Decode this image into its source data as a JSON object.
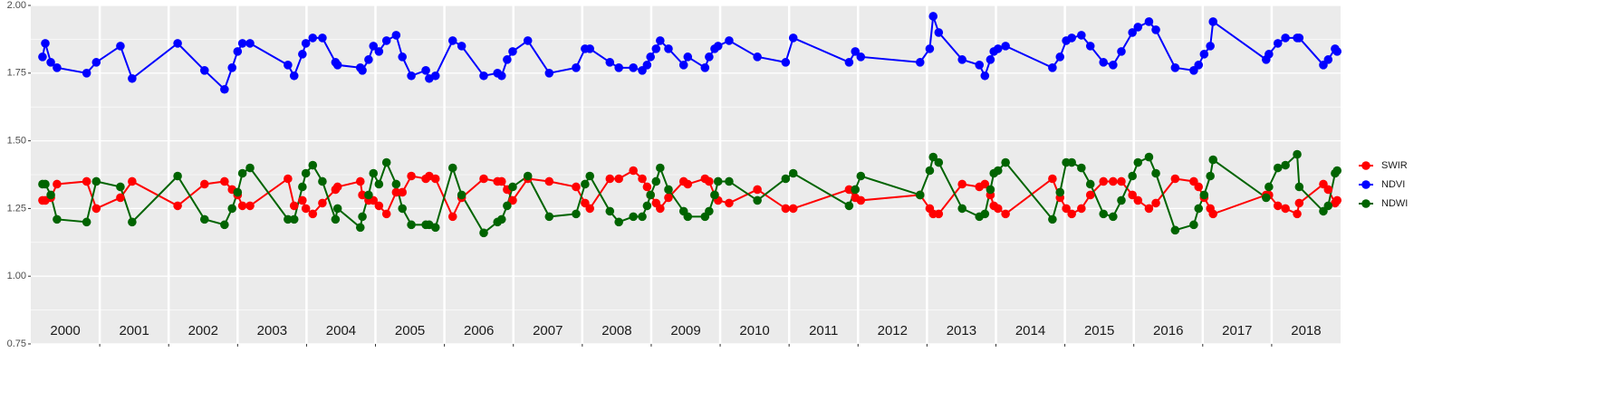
{
  "chart_data": {
    "type": "line",
    "x": [
      2000.17,
      2000.21,
      2000.29,
      2000.38,
      2000.81,
      2000.95,
      2001.3,
      2001.47,
      2002.13,
      2002.52,
      2002.81,
      2002.92,
      2003.0,
      2003.07,
      2003.18,
      2003.73,
      2003.82,
      2003.94,
      2003.99,
      2004.09,
      2004.23,
      2004.42,
      2004.45,
      2004.78,
      2004.81,
      2004.9,
      2004.97,
      2005.05,
      2005.16,
      2005.3,
      2005.39,
      2005.52,
      2005.73,
      2005.78,
      2005.87,
      2006.12,
      2006.25,
      2006.57,
      2006.77,
      2006.83,
      2006.91,
      2006.99,
      2007.21,
      2007.52,
      2007.91,
      2008.04,
      2008.11,
      2008.4,
      2008.53,
      2008.74,
      2008.87,
      2008.94,
      2008.99,
      2009.07,
      2009.13,
      2009.25,
      2009.47,
      2009.53,
      2009.78,
      2009.84,
      2009.92,
      2009.97,
      2010.13,
      2010.54,
      2010.95,
      2011.06,
      2011.87,
      2011.96,
      2012.04,
      2012.9,
      2013.04,
      2013.09,
      2013.17,
      2013.51,
      2013.76,
      2013.84,
      2013.92,
      2013.97,
      2014.03,
      2014.14,
      2014.82,
      2014.93,
      2015.02,
      2015.1,
      2015.24,
      2015.37,
      2015.56,
      2015.7,
      2015.82,
      2015.98,
      2016.06,
      2016.22,
      2016.32,
      2016.6,
      2016.87,
      2016.94,
      2017.02,
      2017.11,
      2017.15,
      2017.92,
      2017.96,
      2018.09,
      2018.2,
      2018.37,
      2018.4,
      2018.75,
      2018.82,
      2018.92,
      2018.95
    ],
    "series": [
      {
        "name": "SWIR",
        "color": "#ff0000",
        "values": [
          1.28,
          1.28,
          1.29,
          1.34,
          1.35,
          1.25,
          1.29,
          1.35,
          1.26,
          1.34,
          1.35,
          1.32,
          1.3,
          1.26,
          1.26,
          1.36,
          1.26,
          1.28,
          1.25,
          1.23,
          1.27,
          1.32,
          1.33,
          1.35,
          1.3,
          1.28,
          1.28,
          1.26,
          1.23,
          1.31,
          1.31,
          1.37,
          1.36,
          1.37,
          1.36,
          1.22,
          1.29,
          1.36,
          1.35,
          1.35,
          1.32,
          1.28,
          1.36,
          1.35,
          1.33,
          1.27,
          1.25,
          1.36,
          1.36,
          1.39,
          1.36,
          1.33,
          1.3,
          1.27,
          1.25,
          1.29,
          1.35,
          1.34,
          1.36,
          1.35,
          1.3,
          1.28,
          1.27,
          1.32,
          1.25,
          1.25,
          1.32,
          1.29,
          1.28,
          1.3,
          1.25,
          1.23,
          1.23,
          1.34,
          1.33,
          1.34,
          1.3,
          1.26,
          1.25,
          1.23,
          1.36,
          1.29,
          1.25,
          1.23,
          1.25,
          1.3,
          1.35,
          1.35,
          1.35,
          1.3,
          1.28,
          1.25,
          1.27,
          1.36,
          1.35,
          1.33,
          1.29,
          1.25,
          1.23,
          1.3,
          1.3,
          1.26,
          1.25,
          1.23,
          1.27,
          1.34,
          1.32,
          1.27,
          1.28
        ]
      },
      {
        "name": "NDVI",
        "color": "#0000ff",
        "values": [
          1.81,
          1.86,
          1.79,
          1.77,
          1.75,
          1.79,
          1.85,
          1.73,
          1.86,
          1.76,
          1.69,
          1.77,
          1.83,
          1.86,
          1.86,
          1.78,
          1.74,
          1.82,
          1.86,
          1.88,
          1.88,
          1.79,
          1.78,
          1.77,
          1.76,
          1.8,
          1.85,
          1.83,
          1.87,
          1.89,
          1.81,
          1.74,
          1.76,
          1.73,
          1.74,
          1.87,
          1.85,
          1.74,
          1.75,
          1.74,
          1.8,
          1.83,
          1.87,
          1.75,
          1.77,
          1.84,
          1.84,
          1.79,
          1.77,
          1.77,
          1.76,
          1.78,
          1.81,
          1.84,
          1.87,
          1.84,
          1.78,
          1.81,
          1.77,
          1.81,
          1.84,
          1.85,
          1.87,
          1.81,
          1.79,
          1.88,
          1.79,
          1.83,
          1.81,
          1.79,
          1.84,
          1.96,
          1.9,
          1.8,
          1.78,
          1.74,
          1.8,
          1.83,
          1.84,
          1.85,
          1.77,
          1.81,
          1.87,
          1.88,
          1.89,
          1.85,
          1.79,
          1.78,
          1.83,
          1.9,
          1.92,
          1.94,
          1.91,
          1.77,
          1.76,
          1.78,
          1.82,
          1.85,
          1.94,
          1.8,
          1.82,
          1.86,
          1.88,
          1.88,
          1.88,
          1.78,
          1.8,
          1.84,
          1.83
        ]
      },
      {
        "name": "NDWI",
        "color": "#006400",
        "values": [
          1.34,
          1.34,
          1.3,
          1.21,
          1.2,
          1.35,
          1.33,
          1.2,
          1.37,
          1.21,
          1.19,
          1.25,
          1.31,
          1.38,
          1.4,
          1.21,
          1.21,
          1.33,
          1.38,
          1.41,
          1.35,
          1.21,
          1.25,
          1.18,
          1.22,
          1.3,
          1.38,
          1.34,
          1.42,
          1.34,
          1.25,
          1.19,
          1.19,
          1.19,
          1.18,
          1.4,
          1.3,
          1.16,
          1.2,
          1.21,
          1.26,
          1.33,
          1.37,
          1.22,
          1.23,
          1.34,
          1.37,
          1.24,
          1.2,
          1.22,
          1.22,
          1.26,
          1.3,
          1.35,
          1.4,
          1.32,
          1.24,
          1.22,
          1.22,
          1.24,
          1.3,
          1.35,
          1.35,
          1.28,
          1.36,
          1.38,
          1.26,
          1.32,
          1.37,
          1.3,
          1.39,
          1.44,
          1.42,
          1.25,
          1.22,
          1.23,
          1.32,
          1.38,
          1.39,
          1.42,
          1.21,
          1.31,
          1.42,
          1.42,
          1.4,
          1.34,
          1.23,
          1.22,
          1.28,
          1.37,
          1.42,
          1.44,
          1.38,
          1.17,
          1.19,
          1.25,
          1.3,
          1.37,
          1.43,
          1.29,
          1.33,
          1.4,
          1.41,
          1.45,
          1.33,
          1.24,
          1.26,
          1.38,
          1.39
        ]
      }
    ],
    "xlim": [
      2000,
      2019
    ],
    "xticks": [
      2001,
      2002,
      2003,
      2004,
      2005,
      2006,
      2007,
      2008,
      2009,
      2010,
      2011,
      2012,
      2013,
      2014,
      2015,
      2016,
      2017,
      2018
    ],
    "ylim": [
      0.75,
      2.0
    ],
    "yticks": [
      0.75,
      {
        "value": 1.0,
        "label": "1.00"
      },
      1.25,
      {
        "value": 1.5,
        "label": "1.50"
      },
      1.75,
      {
        "value": 2.0,
        "label": "2.00"
      }
    ],
    "annotations": [
      "2000",
      "2001",
      "2002",
      "2003",
      "2004",
      "2005",
      "2006",
      "2007",
      "2008",
      "2009",
      "2010",
      "2011",
      "2012",
      "2013",
      "2014",
      "2015",
      "2016",
      "2017",
      "2018"
    ],
    "grid": true,
    "legend": "right"
  }
}
